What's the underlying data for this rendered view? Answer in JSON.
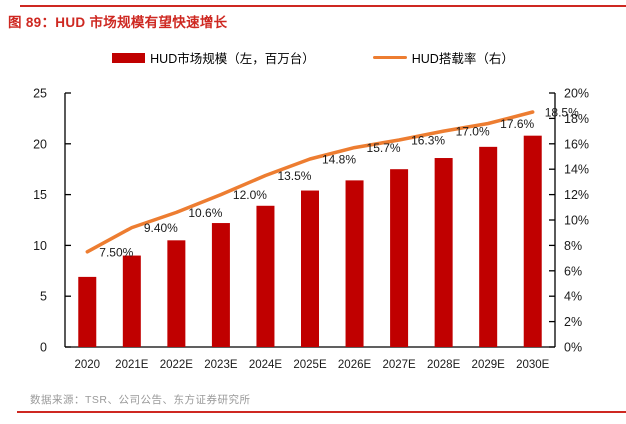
{
  "figure": {
    "title": "图 89：HUD 市场规模有望快速增长",
    "source": "数据来源：TSR、公司公告、东方证券研究所"
  },
  "colors": {
    "accent_red": "#CE2821",
    "bar_red": "#C00000",
    "line_orange": "#ED7D31",
    "axis_black": "#000000",
    "label_dark": "#1a1a1a",
    "source_gray": "#9a9a9a"
  },
  "legend": {
    "items": [
      {
        "label": "HUD市场规模（左，百万台）",
        "marker": "bar-swatch",
        "color": "#C00000"
      },
      {
        "label": "HUD搭载率（右）",
        "marker": "line-swatch",
        "color": "#ED7D31"
      }
    ]
  },
  "chart_data": {
    "type": "bar",
    "subtype": "bar+line combo, dual axis",
    "title": "图 89：HUD 市场规模有望快速增长",
    "categories": [
      "2020",
      "2021E",
      "2022E",
      "2023E",
      "2024E",
      "2025E",
      "2026E",
      "2027E",
      "2028E",
      "2029E",
      "2030E"
    ],
    "series": [
      {
        "name": "HUD市场规模（左，百万台）",
        "type": "bar",
        "axis": "left",
        "color": "#C00000",
        "values": [
          6.9,
          9.0,
          10.5,
          12.2,
          13.9,
          15.4,
          16.4,
          17.5,
          18.6,
          19.7,
          20.8
        ]
      },
      {
        "name": "HUD搭载率（右）",
        "type": "line",
        "axis": "right",
        "color": "#ED7D31",
        "values": [
          7.5,
          9.4,
          10.6,
          12.0,
          13.5,
          14.8,
          15.7,
          16.3,
          17.0,
          17.6,
          18.5
        ],
        "point_labels": [
          "7.50%",
          "9.40%",
          "10.6%",
          "12.0%",
          "13.5%",
          "14.8%",
          "15.7%",
          "16.3%",
          "17.0%",
          "17.6%",
          "18.5%"
        ]
      }
    ],
    "left_axis": {
      "min": 0,
      "max": 25,
      "step": 5,
      "tick_labels": [
        "0",
        "5",
        "10",
        "15",
        "20",
        "25"
      ]
    },
    "right_axis": {
      "min": 0,
      "max": 20,
      "step": 2,
      "tick_labels": [
        "0%",
        "2%",
        "4%",
        "6%",
        "8%",
        "10%",
        "12%",
        "14%",
        "16%",
        "18%",
        "20%"
      ]
    },
    "grid": false,
    "legend_position": "top"
  }
}
